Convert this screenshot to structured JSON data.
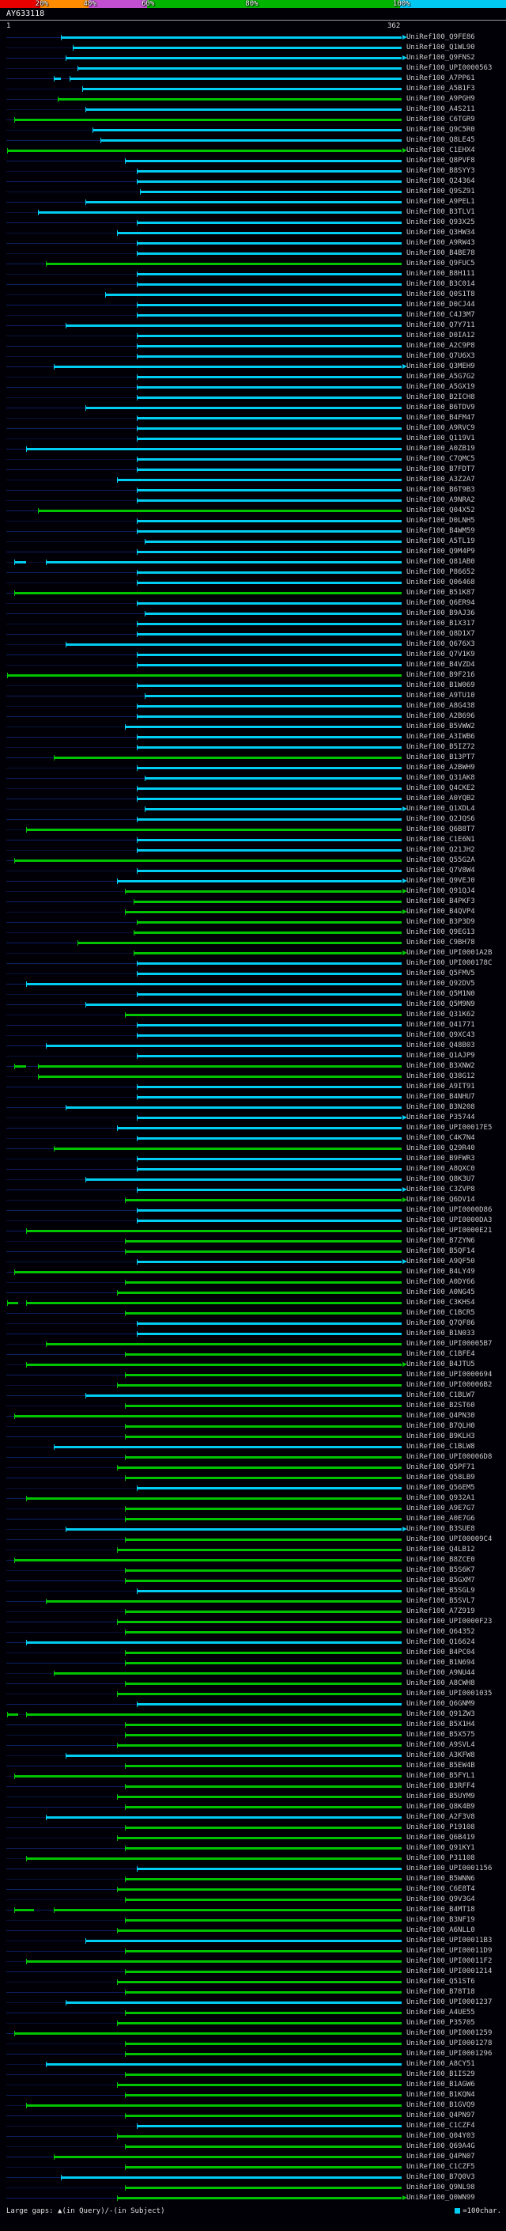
{
  "colors": {
    "cyan": "#00cdf2",
    "green": "#00c400",
    "baseline_odd": "#071238",
    "baseline_even": "#0d1f63",
    "ruler": "#aaaaaa",
    "label": "#c9c9c9"
  },
  "footer": {
    "left": "Large gaps: ▲(in Query)/-(in Subject)",
    "right": "=100char."
  },
  "chart_data": {
    "type": "bar",
    "subtype": "blast-hit-overview",
    "title": "AY633118",
    "query": {
      "name": "AY633118",
      "start": 1,
      "end": 362
    },
    "x_range": [
      1,
      362
    ],
    "identity_scale": {
      "segments": [
        {
          "color": "#e60000",
          "width_pct": 8
        },
        {
          "color": "#ff8c00",
          "width_pct": 9.5
        },
        {
          "color": "#c24fd0",
          "width_pct": 11.5
        },
        {
          "color": "#00b400",
          "width_pct": 50
        },
        {
          "color": "#00c8f0",
          "width_pct": 21
        }
      ],
      "labels": [
        {
          "text": "20%",
          "pos_pct": 8
        },
        {
          "text": "40%",
          "pos_pct": 17.5
        },
        {
          "text": "60%",
          "pos_pct": 29
        },
        {
          "text": "80%",
          "pos_pct": 49.5
        },
        {
          "text": "100%",
          "pos_pct": 79
        }
      ]
    },
    "label_prefix": "UniRef100_",
    "hits": [
      {
        "id": "Q9FE86",
        "c": "C",
        "s": 51,
        "a": 1
      },
      {
        "id": "Q1WL90",
        "c": "C",
        "s": 62
      },
      {
        "id": "Q9FNS2",
        "c": "C",
        "s": 55,
        "a": 1
      },
      {
        "id": "UPI0000563",
        "c": "C",
        "s": 66
      },
      {
        "id": "A7PP61",
        "c": "C",
        "s": 59,
        "p": [
          44,
          51
        ]
      },
      {
        "id": "A5B1F3",
        "c": "C",
        "s": 70
      },
      {
        "id": "A9PGH9",
        "c": "G",
        "s": 48
      },
      {
        "id": "A4S211",
        "c": "C",
        "s": 73
      },
      {
        "id": "C6TGR9",
        "c": "G",
        "s": 8
      },
      {
        "id": "Q9C5R0",
        "c": "C",
        "s": 80
      },
      {
        "id": "Q8LE45",
        "c": "C",
        "s": 87
      },
      {
        "id": "C1EHX4",
        "c": "G",
        "s": 2,
        "a": 1
      },
      {
        "id": "Q8PVF8",
        "c": "C",
        "s": 109
      },
      {
        "id": "B8SYY3",
        "c": "C",
        "s": 120
      },
      {
        "id": "Q24364",
        "c": "C",
        "s": 120
      },
      {
        "id": "Q9SZ91",
        "c": "C",
        "s": 123
      },
      {
        "id": "A9PEL1",
        "c": "C",
        "s": 73
      },
      {
        "id": "B3TLV1",
        "c": "C",
        "s": 30
      },
      {
        "id": "Q93X25",
        "c": "C",
        "s": 120
      },
      {
        "id": "Q3HW34",
        "c": "C",
        "s": 102
      },
      {
        "id": "A9RW43",
        "c": "C",
        "s": 120
      },
      {
        "id": "B4BE78",
        "c": "C",
        "s": 120
      },
      {
        "id": "Q9FUC5",
        "c": "G",
        "s": 37
      },
      {
        "id": "B8H111",
        "c": "C",
        "s": 120
      },
      {
        "id": "B3C014",
        "c": "C",
        "s": 120
      },
      {
        "id": "Q0S1T8",
        "c": "C",
        "s": 91
      },
      {
        "id": "D0CJ44",
        "c": "C",
        "s": 120
      },
      {
        "id": "C4J3M7",
        "c": "C",
        "s": 120
      },
      {
        "id": "Q7Y711",
        "c": "C",
        "s": 55
      },
      {
        "id": "D0IA12",
        "c": "C",
        "s": 120
      },
      {
        "id": "A2C9P8",
        "c": "C",
        "s": 120
      },
      {
        "id": "Q7U6X3",
        "c": "C",
        "s": 120
      },
      {
        "id": "Q3MEH9",
        "c": "C",
        "s": 44,
        "a": 1
      },
      {
        "id": "A5G7G2",
        "c": "C",
        "s": 120
      },
      {
        "id": "A5GX19",
        "c": "C",
        "s": 120
      },
      {
        "id": "B2ICH8",
        "c": "C",
        "s": 120
      },
      {
        "id": "B6TDV9",
        "c": "C",
        "s": 73
      },
      {
        "id": "B4FM47",
        "c": "C",
        "s": 120
      },
      {
        "id": "A9RVC9",
        "c": "C",
        "s": 120
      },
      {
        "id": "Q119V1",
        "c": "C",
        "s": 120
      },
      {
        "id": "A0ZB19",
        "c": "C",
        "s": 19
      },
      {
        "id": "C7QMC5",
        "c": "C",
        "s": 120
      },
      {
        "id": "B7FDT7",
        "c": "C",
        "s": 120
      },
      {
        "id": "A3Z2A7",
        "c": "C",
        "s": 102
      },
      {
        "id": "B6T9B3",
        "c": "C",
        "s": 120
      },
      {
        "id": "A9NRA2",
        "c": "C",
        "s": 120
      },
      {
        "id": "Q04X52",
        "c": "G",
        "s": 30
      },
      {
        "id": "D0LNH5",
        "c": "C",
        "s": 120
      },
      {
        "id": "B4WM59",
        "c": "C",
        "s": 120
      },
      {
        "id": "A5TL19",
        "c": "C",
        "s": 127
      },
      {
        "id": "Q9M4P9",
        "c": "C",
        "s": 120
      },
      {
        "id": "Q81AB0",
        "c": "C",
        "s": 37,
        "p": [
          8,
          19
        ]
      },
      {
        "id": "P86652",
        "c": "C",
        "s": 120
      },
      {
        "id": "Q06468",
        "c": "C",
        "s": 120
      },
      {
        "id": "B51K87",
        "c": "G",
        "s": 8
      },
      {
        "id": "Q6ER94",
        "c": "C",
        "s": 120
      },
      {
        "id": "B9AJ36",
        "c": "C",
        "s": 127
      },
      {
        "id": "B1X317",
        "c": "C",
        "s": 120
      },
      {
        "id": "Q8D1X7",
        "c": "C",
        "s": 120
      },
      {
        "id": "Q676X3",
        "c": "C",
        "s": 55
      },
      {
        "id": "Q7V1K9",
        "c": "C",
        "s": 120
      },
      {
        "id": "B4VZD4",
        "c": "C",
        "s": 120
      },
      {
        "id": "B9F216",
        "c": "G",
        "s": 2
      },
      {
        "id": "B1W069",
        "c": "C",
        "s": 120
      },
      {
        "id": "A9TU10",
        "c": "C",
        "s": 127
      },
      {
        "id": "A8G438",
        "c": "C",
        "s": 120
      },
      {
        "id": "A2B696",
        "c": "C",
        "s": 120
      },
      {
        "id": "B5VWW2",
        "c": "C",
        "s": 109
      },
      {
        "id": "A3IWB6",
        "c": "C",
        "s": 120
      },
      {
        "id": "B5IZ72",
        "c": "C",
        "s": 120
      },
      {
        "id": "B13PT7",
        "c": "G",
        "s": 44
      },
      {
        "id": "A2BWH9",
        "c": "C",
        "s": 120
      },
      {
        "id": "Q31AK8",
        "c": "C",
        "s": 127
      },
      {
        "id": "Q4CKE2",
        "c": "C",
        "s": 120
      },
      {
        "id": "A0YQB2",
        "c": "C",
        "s": 120
      },
      {
        "id": "Q1XDL4",
        "c": "C",
        "s": 127,
        "a": 1
      },
      {
        "id": "Q2JQS6",
        "c": "C",
        "s": 120
      },
      {
        "id": "Q6B8T7",
        "c": "G",
        "s": 19
      },
      {
        "id": "C1E6N1",
        "c": "C",
        "s": 120
      },
      {
        "id": "Q21JH2",
        "c": "C",
        "s": 120
      },
      {
        "id": "Q55G2A",
        "c": "G",
        "s": 8
      },
      {
        "id": "Q7V8W4",
        "c": "C",
        "s": 120
      },
      {
        "id": "Q9VEJ0",
        "c": "C",
        "s": 102,
        "a": 1
      },
      {
        "id": "Q91QJ4",
        "c": "G",
        "s": 109,
        "a": 1
      },
      {
        "id": "B4PKF3",
        "c": "G",
        "s": 117
      },
      {
        "id": "B4QVP4",
        "c": "G",
        "s": 109,
        "a": 1
      },
      {
        "id": "B3P3D9",
        "c": "G",
        "s": 120
      },
      {
        "id": "Q9EG13",
        "c": "G",
        "s": 117
      },
      {
        "id": "C9BH78",
        "c": "G",
        "s": 66
      },
      {
        "id": "UPI0001A2B",
        "c": "G",
        "s": 117,
        "a": 1
      },
      {
        "id": "UPI000178C",
        "c": "C",
        "s": 120
      },
      {
        "id": "Q5FMV5",
        "c": "C",
        "s": 120
      },
      {
        "id": "Q92DV5",
        "c": "C",
        "s": 19
      },
      {
        "id": "Q5M1N0",
        "c": "C",
        "s": 120
      },
      {
        "id": "Q5M9N9",
        "c": "C",
        "s": 73
      },
      {
        "id": "Q31K62",
        "c": "G",
        "s": 109
      },
      {
        "id": "Q41771",
        "c": "C",
        "s": 120
      },
      {
        "id": "Q9XC43",
        "c": "C",
        "s": 120
      },
      {
        "id": "Q48B03",
        "c": "C",
        "s": 37
      },
      {
        "id": "Q1AJP9",
        "c": "C",
        "s": 120
      },
      {
        "id": "B3XNW2",
        "c": "G",
        "s": 30,
        "p": [
          8,
          19
        ]
      },
      {
        "id": "Q38G12",
        "c": "G",
        "s": 30
      },
      {
        "id": "A9IT91",
        "c": "C",
        "s": 120
      },
      {
        "id": "B4NHU7",
        "c": "C",
        "s": 120
      },
      {
        "id": "B3N208",
        "c": "C",
        "s": 55
      },
      {
        "id": "P35744",
        "c": "C",
        "s": 120,
        "a": 1
      },
      {
        "id": "UPI00017E5",
        "c": "C",
        "s": 102
      },
      {
        "id": "C4K7N4",
        "c": "C",
        "s": 120
      },
      {
        "id": "Q29R40",
        "c": "G",
        "s": 44
      },
      {
        "id": "B9FWR3",
        "c": "C",
        "s": 120
      },
      {
        "id": "A8QXC0",
        "c": "C",
        "s": 120
      },
      {
        "id": "Q8K3U7",
        "c": "C",
        "s": 73
      },
      {
        "id": "C3ZVP8",
        "c": "C",
        "s": 120,
        "a": 1
      },
      {
        "id": "Q6DV14",
        "c": "G",
        "s": 109,
        "a": 1
      },
      {
        "id": "UPI0000D86",
        "c": "C",
        "s": 120
      },
      {
        "id": "UPI0000DA3",
        "c": "C",
        "s": 120
      },
      {
        "id": "UPI0000E21",
        "c": "G",
        "s": 19
      },
      {
        "id": "B7ZYN6",
        "c": "G",
        "s": 109
      },
      {
        "id": "B5QF14",
        "c": "G",
        "s": 109
      },
      {
        "id": "A9QF50",
        "c": "C",
        "s": 120,
        "a": 1
      },
      {
        "id": "B4LY49",
        "c": "G",
        "s": 8
      },
      {
        "id": "A0DY66",
        "c": "G",
        "s": 109
      },
      {
        "id": "A0NG45",
        "c": "G",
        "s": 102
      },
      {
        "id": "C3KHS4",
        "c": "G",
        "s": 19,
        "p": [
          2,
          12
        ]
      },
      {
        "id": "C1BCR5",
        "c": "G",
        "s": 109
      },
      {
        "id": "Q7QF86",
        "c": "C",
        "s": 120
      },
      {
        "id": "B1N033",
        "c": "C",
        "s": 120
      },
      {
        "id": "UPI00005B7",
        "c": "G",
        "s": 37
      },
      {
        "id": "C1BFE4",
        "c": "G",
        "s": 109
      },
      {
        "id": "B4JTU5",
        "c": "G",
        "s": 19,
        "a": 1
      },
      {
        "id": "UPI0000694",
        "c": "G",
        "s": 109
      },
      {
        "id": "UPI00006B2",
        "c": "G",
        "s": 102
      },
      {
        "id": "C1BLW7",
        "c": "C",
        "s": 73
      },
      {
        "id": "B2ST60",
        "c": "G",
        "s": 109
      },
      {
        "id": "Q4PN30",
        "c": "G",
        "s": 8
      },
      {
        "id": "B7QLH0",
        "c": "G",
        "s": 109
      },
      {
        "id": "B9KLH3",
        "c": "G",
        "s": 109
      },
      {
        "id": "C1BLW8",
        "c": "C",
        "s": 44
      },
      {
        "id": "UPI00006D8",
        "c": "G",
        "s": 109
      },
      {
        "id": "Q5PF71",
        "c": "G",
        "s": 102
      },
      {
        "id": "Q58LB9",
        "c": "G",
        "s": 109
      },
      {
        "id": "Q56EM5",
        "c": "C",
        "s": 120
      },
      {
        "id": "Q932A1",
        "c": "G",
        "s": 19
      },
      {
        "id": "A9E7G7",
        "c": "G",
        "s": 109
      },
      {
        "id": "A0E7G6",
        "c": "G",
        "s": 109
      },
      {
        "id": "B3SUE8",
        "c": "C",
        "s": 55,
        "a": 1
      },
      {
        "id": "UPI00009C4",
        "c": "G",
        "s": 109
      },
      {
        "id": "Q4LB12",
        "c": "G",
        "s": 102
      },
      {
        "id": "B8ZCE0",
        "c": "G",
        "s": 8
      },
      {
        "id": "B5S6K7",
        "c": "G",
        "s": 109
      },
      {
        "id": "B5GXM7",
        "c": "G",
        "s": 109
      },
      {
        "id": "B5SGL9",
        "c": "C",
        "s": 120
      },
      {
        "id": "B5SVL7",
        "c": "G",
        "s": 37
      },
      {
        "id": "A7Z919",
        "c": "G",
        "s": 109
      },
      {
        "id": "UPI0000F23",
        "c": "G",
        "s": 102
      },
      {
        "id": "Q64352",
        "c": "G",
        "s": 109
      },
      {
        "id": "Q16624",
        "c": "C",
        "s": 19
      },
      {
        "id": "B4PC04",
        "c": "G",
        "s": 109
      },
      {
        "id": "B1N694",
        "c": "G",
        "s": 109
      },
      {
        "id": "A9NU44",
        "c": "G",
        "s": 44
      },
      {
        "id": "A8CWH8",
        "c": "G",
        "s": 109
      },
      {
        "id": "UPI0001035",
        "c": "G",
        "s": 102
      },
      {
        "id": "Q6GNM9",
        "c": "C",
        "s": 120
      },
      {
        "id": "Q91ZW3",
        "c": "G",
        "s": 19,
        "p": [
          2,
          12
        ]
      },
      {
        "id": "B5X1H4",
        "c": "G",
        "s": 109
      },
      {
        "id": "B5X575",
        "c": "G",
        "s": 109
      },
      {
        "id": "A9SVL4",
        "c": "G",
        "s": 102
      },
      {
        "id": "A3KFW8",
        "c": "C",
        "s": 55
      },
      {
        "id": "B5EW4B",
        "c": "G",
        "s": 109
      },
      {
        "id": "B5FYL1",
        "c": "G",
        "s": 8
      },
      {
        "id": "B3RFF4",
        "c": "G",
        "s": 109
      },
      {
        "id": "B5UYM9",
        "c": "G",
        "s": 102
      },
      {
        "id": "Q8K4B9",
        "c": "G",
        "s": 109
      },
      {
        "id": "A2F3V8",
        "c": "C",
        "s": 37
      },
      {
        "id": "P19108",
        "c": "G",
        "s": 109
      },
      {
        "id": "Q6B419",
        "c": "G",
        "s": 102
      },
      {
        "id": "Q91KY1",
        "c": "G",
        "s": 109
      },
      {
        "id": "P31108",
        "c": "G",
        "s": 19
      },
      {
        "id": "UPI0001156",
        "c": "C",
        "s": 120
      },
      {
        "id": "B5WNN6",
        "c": "G",
        "s": 109
      },
      {
        "id": "C6E8T4",
        "c": "G",
        "s": 102
      },
      {
        "id": "Q9V3G4",
        "c": "G",
        "s": 109
      },
      {
        "id": "B4MT18",
        "c": "G",
        "s": 44,
        "p": [
          8,
          26
        ]
      },
      {
        "id": "B3NF19",
        "c": "G",
        "s": 109
      },
      {
        "id": "A6NLL0",
        "c": "G",
        "s": 102
      },
      {
        "id": "UPI00011B3",
        "c": "C",
        "s": 73
      },
      {
        "id": "UPI00011D9",
        "c": "G",
        "s": 109
      },
      {
        "id": "UPI00011F2",
        "c": "G",
        "s": 19
      },
      {
        "id": "UPI0001214",
        "c": "G",
        "s": 109
      },
      {
        "id": "Q51ST6",
        "c": "G",
        "s": 102
      },
      {
        "id": "B78T18",
        "c": "G",
        "s": 109
      },
      {
        "id": "UPI0001237",
        "c": "C",
        "s": 55
      },
      {
        "id": "A4UE55",
        "c": "G",
        "s": 109
      },
      {
        "id": "P35705",
        "c": "G",
        "s": 102
      },
      {
        "id": "UPI0001259",
        "c": "G",
        "s": 8
      },
      {
        "id": "UPI0001278",
        "c": "G",
        "s": 109
      },
      {
        "id": "UPI0001296",
        "c": "G",
        "s": 109
      },
      {
        "id": "A8CY51",
        "c": "C",
        "s": 37
      },
      {
        "id": "B1IS29",
        "c": "G",
        "s": 109
      },
      {
        "id": "B1AGW6",
        "c": "G",
        "s": 102
      },
      {
        "id": "B1KQN4",
        "c": "G",
        "s": 109
      },
      {
        "id": "B1GVQ9",
        "c": "G",
        "s": 19
      },
      {
        "id": "Q4PN97",
        "c": "G",
        "s": 109
      },
      {
        "id": "C1CZF4",
        "c": "C",
        "s": 120
      },
      {
        "id": "Q04Y03",
        "c": "G",
        "s": 102
      },
      {
        "id": "Q69A4G",
        "c": "G",
        "s": 109
      },
      {
        "id": "Q4PN07",
        "c": "G",
        "s": 44
      },
      {
        "id": "C1CZF5",
        "c": "G",
        "s": 109
      },
      {
        "id": "B7Q0V3",
        "c": "C",
        "s": 51
      },
      {
        "id": "Q9NL98",
        "c": "G",
        "s": 109
      },
      {
        "id": "Q0WN99",
        "c": "G",
        "s": 102,
        "a": 1
      }
    ]
  }
}
